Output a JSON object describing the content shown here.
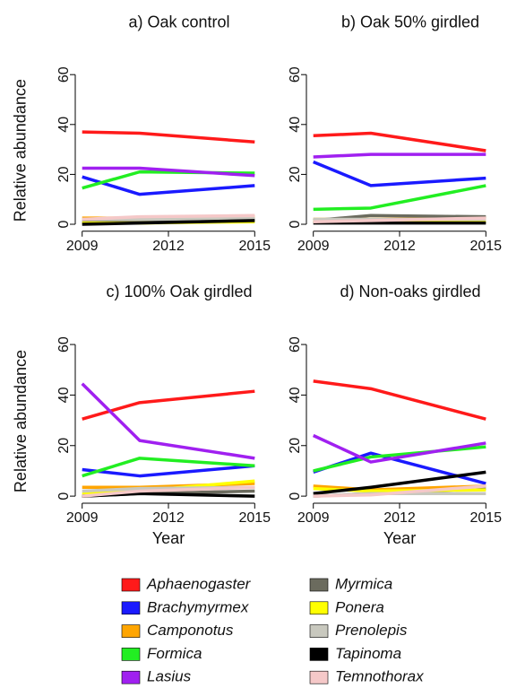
{
  "chart_data": [
    {
      "type": "line",
      "title": "a) Oak control",
      "ylabel": "Relative abundance",
      "x": [
        2009,
        2011,
        2015
      ],
      "xlim": [
        2008.76,
        2015.24
      ],
      "xticks": [
        2009,
        2012,
        2015
      ],
      "ylim": [
        -2.8,
        72.8
      ],
      "yticks": [
        0,
        20,
        40,
        60
      ],
      "series": [
        {
          "name": "Aphaenogaster",
          "color": "#ff1a1a",
          "values": [
            37,
            36.5,
            33
          ]
        },
        {
          "name": "Brachymyrmex",
          "color": "#1a1aff",
          "values": [
            19,
            12,
            15.5
          ]
        },
        {
          "name": "Camponotus",
          "color": "#ffa500",
          "values": [
            2.5,
            2.5,
            3
          ]
        },
        {
          "name": "Formica",
          "color": "#22ee22",
          "values": [
            14.5,
            21,
            20.5
          ]
        },
        {
          "name": "Lasius",
          "color": "#a020f0",
          "values": [
            22.5,
            22.5,
            19.5
          ]
        },
        {
          "name": "Myrmica",
          "color": "#6b6b5e",
          "values": [
            1,
            1.5,
            2
          ]
        },
        {
          "name": "Ponera",
          "color": "#ffff00",
          "values": [
            0.5,
            0.5,
            1
          ]
        },
        {
          "name": "Prenolepis",
          "color": "#c8c8be",
          "values": [
            2,
            2,
            2.5
          ]
        },
        {
          "name": "Tapinoma",
          "color": "#000000",
          "values": [
            0,
            0.5,
            1.5
          ]
        },
        {
          "name": "Temnothorax",
          "color": "#f5c8c8",
          "values": [
            2,
            3,
            3.5
          ]
        }
      ]
    },
    {
      "type": "line",
      "title": "b) Oak 50% girdled",
      "x": [
        2009,
        2011,
        2015
      ],
      "xlim": [
        2008.76,
        2015.24
      ],
      "xticks": [
        2009,
        2012,
        2015
      ],
      "ylim": [
        -2.8,
        72.8
      ],
      "yticks": [
        0,
        20,
        40,
        60
      ],
      "series": [
        {
          "values": [
            35.5,
            36.5,
            29.5
          ]
        },
        {
          "values": [
            25,
            15.5,
            18.5
          ]
        },
        {
          "values": [
            2,
            2,
            2.5
          ]
        },
        {
          "values": [
            6,
            6.5,
            15.5
          ]
        },
        {
          "values": [
            27,
            28,
            28
          ]
        },
        {
          "values": [
            1.5,
            3.5,
            3
          ]
        },
        {
          "values": [
            1,
            1,
            1
          ]
        },
        {
          "values": [
            2,
            2,
            2
          ]
        },
        {
          "values": [
            0.5,
            0.5,
            0.5
          ]
        },
        {
          "values": [
            1,
            1.5,
            2.5
          ]
        }
      ]
    },
    {
      "type": "line",
      "title": "c) 100% Oak girdled",
      "xlabel": "Year",
      "ylabel": "Relative abundance",
      "x": [
        2009,
        2011,
        2015
      ],
      "xlim": [
        2008.76,
        2015.24
      ],
      "xticks": [
        2009,
        2012,
        2015
      ],
      "ylim": [
        -2.8,
        72.8
      ],
      "yticks": [
        0,
        20,
        40,
        60
      ],
      "series": [
        {
          "values": [
            30.5,
            37,
            41.5
          ]
        },
        {
          "values": [
            10.5,
            8,
            12
          ]
        },
        {
          "values": [
            3.5,
            3.5,
            5
          ]
        },
        {
          "values": [
            8,
            15,
            12
          ]
        },
        {
          "values": [
            44.5,
            22,
            15
          ]
        },
        {
          "values": [
            0,
            1,
            2
          ]
        },
        {
          "values": [
            1,
            2,
            6
          ]
        },
        {
          "values": [
            2,
            3,
            3.5
          ]
        },
        {
          "values": [
            0,
            1,
            0
          ]
        },
        {
          "values": [
            0,
            2,
            3.5
          ]
        }
      ]
    },
    {
      "type": "line",
      "title": "d) Non-oaks girdled",
      "xlabel": "Year",
      "x": [
        2009,
        2011,
        2015
      ],
      "xlim": [
        2008.76,
        2015.24
      ],
      "xticks": [
        2009,
        2012,
        2015
      ],
      "ylim": [
        -2.8,
        72.8
      ],
      "yticks": [
        0,
        20,
        40,
        60
      ],
      "series": [
        {
          "values": [
            45.5,
            42.5,
            30.5
          ]
        },
        {
          "values": [
            9.5,
            17,
            5
          ]
        },
        {
          "values": [
            4,
            2.5,
            4
          ]
        },
        {
          "values": [
            10,
            15.5,
            19.5
          ]
        },
        {
          "values": [
            24,
            13.5,
            21
          ]
        },
        {
          "values": [
            0,
            1,
            3
          ]
        },
        {
          "values": [
            3,
            2,
            2.5
          ]
        },
        {
          "values": [
            0,
            1,
            1
          ]
        },
        {
          "values": [
            1,
            3.5,
            9.5
          ]
        },
        {
          "values": [
            0,
            0.5,
            4
          ]
        }
      ]
    }
  ]
}
